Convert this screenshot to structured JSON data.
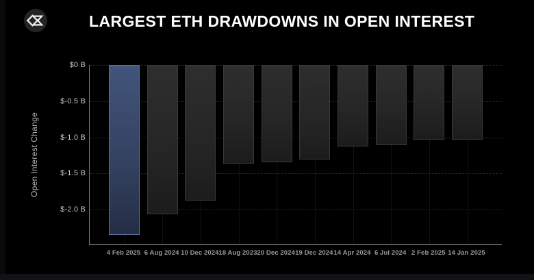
{
  "header": {
    "title": "LARGEST ETH DRAWDOWNS IN OPEN INTEREST"
  },
  "icons": {
    "logo": "sigma-diamond-icon"
  },
  "chart_data": {
    "type": "bar",
    "title": "LARGEST ETH DRAWDOWNS IN OPEN INTEREST",
    "xlabel": "",
    "ylabel": "Open Interest Change",
    "unit": "billions USD",
    "categories": [
      "4 Feb 2025",
      "6 Aug 2024",
      "10 Dec 2024",
      "18 Aug 2023",
      "20 Dec 2024",
      "19 Dec 2024",
      "14 Apr 2024",
      "6 Jul 2024",
      "2 Feb 2025",
      "14 Jan 2025"
    ],
    "values": [
      -2.35,
      -2.06,
      -1.87,
      -1.36,
      -1.34,
      -1.31,
      -1.13,
      -1.11,
      -1.03,
      -1.03
    ],
    "ylim": [
      -2.48,
      0
    ],
    "yticks": [
      0,
      -0.5,
      -1.0,
      -1.5,
      -2.0
    ],
    "ytick_labels": [
      "$0 B",
      "$-0.5 B",
      "$-1.0 B",
      "$-1.5 B",
      "$-2.0 B"
    ],
    "grid": "horizontal dashed",
    "legend": "none",
    "highlight_index": 0,
    "colors": {
      "background": "#000000",
      "highlight_bar": "#41547a",
      "highlight_border": "#5d729a",
      "bar": "#272727",
      "bar_border": "#3a3a3c",
      "title_text": "#ffffff",
      "ytick_text": "#c6c6ca",
      "xtick_text": "#9b9b9e",
      "axis_line": "#8e8e93"
    }
  }
}
